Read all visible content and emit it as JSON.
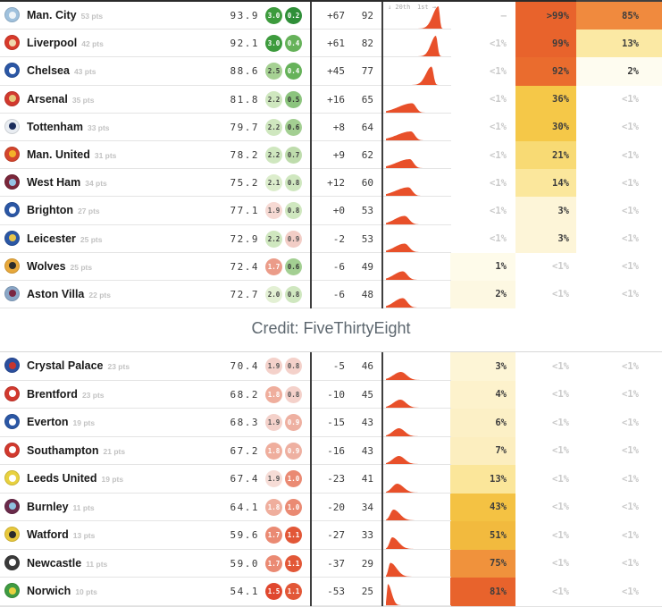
{
  "credit": "Credit: FiveThirtyEight",
  "chart_data": {
    "type": "table",
    "header": {
      "spark_left": "↓ 20th",
      "spark_right": "1st →"
    },
    "accent_colors": {
      "spark_fill": "#e8502a",
      "divider": "#3f3f3f",
      "muted_text": "#c9c9c9",
      "dark_text": "#3d3d3d"
    },
    "tables": [
      {
        "rows": [
          {
            "team": "Man. City",
            "pts_label": "53 pts",
            "crest": [
              "#9fc1dd",
              "#eef4f8"
            ],
            "spi": "93.9",
            "off": [
              "3.0",
              "#3d9b3d",
              "#ffffff"
            ],
            "def": [
              "0.2",
              "#2f8f38",
              "#ffffff"
            ],
            "gd": "+67",
            "pts": "92",
            "spark": {
              "c": 0.84,
              "wl": 0.09,
              "wr": 0.02,
              "h": 1
            },
            "rel": {
              "t": "–",
              "bg": "",
              "muted": true
            },
            "top4": {
              "t": ">99%",
              "bg": "#e8632c",
              "muted": false
            },
            "win": {
              "t": "85%",
              "bg": "#f08a3e",
              "muted": false
            }
          },
          {
            "team": "Liverpool",
            "pts_label": "42 pts",
            "crest": [
              "#d83a2b",
              "#efd7ad"
            ],
            "spi": "92.1",
            "off": [
              "3.0",
              "#3d9b3d",
              "#ffffff"
            ],
            "def": [
              "0.4",
              "#66b25a",
              "#ffffff"
            ],
            "gd": "+61",
            "pts": "82",
            "spark": {
              "c": 0.8,
              "wl": 0.08,
              "wr": 0.025,
              "h": 0.92
            },
            "rel": {
              "t": "<1%",
              "bg": "",
              "muted": true
            },
            "top4": {
              "t": "99%",
              "bg": "#e8632c",
              "muted": false
            },
            "win": {
              "t": "13%",
              "bg": "#fbe9a4",
              "muted": false
            }
          },
          {
            "team": "Chelsea",
            "pts_label": "43 pts",
            "crest": [
              "#2b57a5",
              "#ffffff"
            ],
            "spi": "88.6",
            "off": [
              "2.5",
              "#a6d193",
              "#3a3a3a"
            ],
            "def": [
              "0.4",
              "#66b25a",
              "#ffffff"
            ],
            "gd": "+45",
            "pts": "77",
            "spark": {
              "c": 0.73,
              "wl": 0.09,
              "wr": 0.03,
              "h": 0.82
            },
            "rel": {
              "t": "<1%",
              "bg": "",
              "muted": true
            },
            "top4": {
              "t": "92%",
              "bg": "#ea6c2e",
              "muted": false
            },
            "win": {
              "t": "2%",
              "bg": "#fefcf0",
              "muted": false
            }
          },
          {
            "team": "Arsenal",
            "pts_label": "35 pts",
            "crest": [
              "#d2392e",
              "#e6c87c"
            ],
            "spi": "81.8",
            "off": [
              "2.2",
              "#cfe7bf",
              "#444444"
            ],
            "def": [
              "0.5",
              "#8cc47e",
              "#333333"
            ],
            "gd": "+16",
            "pts": "65",
            "spark": {
              "c": 0.42,
              "wl": 0.22,
              "wr": 0.06,
              "h": 0.42
            },
            "rel": {
              "t": "<1%",
              "bg": "",
              "muted": true
            },
            "top4": {
              "t": "36%",
              "bg": "#f5c848",
              "muted": false
            },
            "win": {
              "t": "<1%",
              "bg": "",
              "muted": true
            }
          },
          {
            "team": "Tottenham",
            "pts_label": "33 pts",
            "crest": [
              "#e9edf2",
              "#1b2d5c"
            ],
            "spi": "79.7",
            "off": [
              "2.2",
              "#cfe7bf",
              "#444444"
            ],
            "def": [
              "0.6",
              "#a3cf92",
              "#333333"
            ],
            "gd": "+8",
            "pts": "64",
            "spark": {
              "c": 0.4,
              "wl": 0.22,
              "wr": 0.06,
              "h": 0.4
            },
            "rel": {
              "t": "<1%",
              "bg": "",
              "muted": true
            },
            "top4": {
              "t": "30%",
              "bg": "#f5c848",
              "muted": false
            },
            "win": {
              "t": "<1%",
              "bg": "",
              "muted": true
            }
          },
          {
            "team": "Man. United",
            "pts_label": "31 pts",
            "crest": [
              "#d4452c",
              "#f3b229"
            ],
            "spi": "78.2",
            "off": [
              "2.2",
              "#cfe7bf",
              "#444444"
            ],
            "def": [
              "0.7",
              "#bedcac",
              "#444444"
            ],
            "gd": "+9",
            "pts": "62",
            "spark": {
              "c": 0.38,
              "wl": 0.21,
              "wr": 0.06,
              "h": 0.4
            },
            "rel": {
              "t": "<1%",
              "bg": "",
              "muted": true
            },
            "top4": {
              "t": "21%",
              "bg": "#f8da74",
              "muted": false
            },
            "win": {
              "t": "<1%",
              "bg": "",
              "muted": true
            }
          },
          {
            "team": "West Ham",
            "pts_label": "34 pts",
            "crest": [
              "#7a263a",
              "#95c3e4"
            ],
            "spi": "75.2",
            "off": [
              "2.1",
              "#dcedcc",
              "#444444"
            ],
            "def": [
              "0.8",
              "#cfe7bf",
              "#444444"
            ],
            "gd": "+12",
            "pts": "60",
            "spark": {
              "c": 0.36,
              "wl": 0.2,
              "wr": 0.06,
              "h": 0.38
            },
            "rel": {
              "t": "<1%",
              "bg": "",
              "muted": true
            },
            "top4": {
              "t": "14%",
              "bg": "#fbe79c",
              "muted": false
            },
            "win": {
              "t": "<1%",
              "bg": "",
              "muted": true
            }
          },
          {
            "team": "Brighton",
            "pts_label": "27 pts",
            "crest": [
              "#2b57a5",
              "#ffffff"
            ],
            "spi": "77.1",
            "off": [
              "1.9",
              "#f6d9d3",
              "#555555"
            ],
            "def": [
              "0.8",
              "#cfe7bf",
              "#444444"
            ],
            "gd": "+0",
            "pts": "53",
            "spark": {
              "c": 0.3,
              "wl": 0.16,
              "wr": 0.07,
              "h": 0.38
            },
            "rel": {
              "t": "<1%",
              "bg": "",
              "muted": true
            },
            "top4": {
              "t": "3%",
              "bg": "#fdf5d8",
              "muted": false
            },
            "win": {
              "t": "<1%",
              "bg": "",
              "muted": true
            }
          },
          {
            "team": "Leicester",
            "pts_label": "25 pts",
            "crest": [
              "#2b57a5",
              "#e8c54a"
            ],
            "spi": "72.9",
            "off": [
              "2.2",
              "#cfe7bf",
              "#444444"
            ],
            "def": [
              "0.9",
              "#f2cdc6",
              "#555555"
            ],
            "gd": "-2",
            "pts": "53",
            "spark": {
              "c": 0.3,
              "wl": 0.16,
              "wr": 0.07,
              "h": 0.38
            },
            "rel": {
              "t": "<1%",
              "bg": "",
              "muted": true
            },
            "top4": {
              "t": "3%",
              "bg": "#fdf5d8",
              "muted": false
            },
            "win": {
              "t": "<1%",
              "bg": "",
              "muted": true
            }
          },
          {
            "team": "Wolves",
            "pts_label": "25 pts",
            "crest": [
              "#e7a83b",
              "#2b2b2b"
            ],
            "spi": "72.4",
            "off": [
              "1.7",
              "#eb9c89",
              "#ffffff"
            ],
            "def": [
              "0.6",
              "#a3cf92",
              "#333333"
            ],
            "gd": "-6",
            "pts": "49",
            "spark": {
              "c": 0.27,
              "wl": 0.14,
              "wr": 0.07,
              "h": 0.38
            },
            "rel": {
              "t": "1%",
              "bg": "#fefbea",
              "muted": false
            },
            "top4": {
              "t": "<1%",
              "bg": "",
              "muted": true
            },
            "win": {
              "t": "<1%",
              "bg": "",
              "muted": true
            }
          },
          {
            "team": "Aston Villa",
            "pts_label": "22 pts",
            "crest": [
              "#8aa7c7",
              "#7a2741"
            ],
            "spi": "72.7",
            "off": [
              "2.0",
              "#e3f0d4",
              "#444444"
            ],
            "def": [
              "0.8",
              "#cfe7bf",
              "#444444"
            ],
            "gd": "-6",
            "pts": "48",
            "spark": {
              "c": 0.27,
              "wl": 0.14,
              "wr": 0.07,
              "h": 0.42
            },
            "rel": {
              "t": "2%",
              "bg": "#fdf8e2",
              "muted": false
            },
            "top4": {
              "t": "<1%",
              "bg": "",
              "muted": true
            },
            "win": {
              "t": "<1%",
              "bg": "",
              "muted": true
            }
          }
        ]
      },
      {
        "rows": [
          {
            "team": "Crystal Palace",
            "pts_label": "23 pts",
            "crest": [
              "#2b4f9e",
              "#c8362e"
            ],
            "spi": "70.4",
            "off": [
              "1.9",
              "#f4d1ca",
              "#555555"
            ],
            "def": [
              "0.8",
              "#f4d1ca",
              "#555555"
            ],
            "gd": "-5",
            "pts": "46",
            "spark": {
              "c": 0.24,
              "wl": 0.12,
              "wr": 0.09,
              "h": 0.36
            },
            "rel": {
              "t": "3%",
              "bg": "#fdf5d6",
              "muted": false
            },
            "top4": {
              "t": "<1%",
              "bg": "",
              "muted": true
            },
            "win": {
              "t": "<1%",
              "bg": "",
              "muted": true
            }
          },
          {
            "team": "Brentford",
            "pts_label": "23 pts",
            "crest": [
              "#d2392e",
              "#ffffff"
            ],
            "spi": "68.2",
            "off": [
              "1.8",
              "#efae9d",
              "#ffffff"
            ],
            "def": [
              "0.8",
              "#f4d1ca",
              "#555555"
            ],
            "gd": "-10",
            "pts": "45",
            "spark": {
              "c": 0.23,
              "wl": 0.11,
              "wr": 0.09,
              "h": 0.36
            },
            "rel": {
              "t": "4%",
              "bg": "#fdf2cc",
              "muted": false
            },
            "top4": {
              "t": "<1%",
              "bg": "",
              "muted": true
            },
            "win": {
              "t": "<1%",
              "bg": "",
              "muted": true
            }
          },
          {
            "team": "Everton",
            "pts_label": "19 pts",
            "crest": [
              "#2b57a5",
              "#ffffff"
            ],
            "spi": "68.3",
            "off": [
              "1.9",
              "#f4d1ca",
              "#555555"
            ],
            "def": [
              "0.9",
              "#eeb0a1",
              "#ffffff"
            ],
            "gd": "-15",
            "pts": "43",
            "spark": {
              "c": 0.21,
              "wl": 0.1,
              "wr": 0.09,
              "h": 0.36
            },
            "rel": {
              "t": "6%",
              "bg": "#fcf0c6",
              "muted": false
            },
            "top4": {
              "t": "<1%",
              "bg": "",
              "muted": true
            },
            "win": {
              "t": "<1%",
              "bg": "",
              "muted": true
            }
          },
          {
            "team": "Southampton",
            "pts_label": "21 pts",
            "crest": [
              "#d2392e",
              "#ffffff"
            ],
            "spi": "67.2",
            "off": [
              "1.8",
              "#efae9d",
              "#ffffff"
            ],
            "def": [
              "0.9",
              "#eeb0a1",
              "#ffffff"
            ],
            "gd": "-16",
            "pts": "43",
            "spark": {
              "c": 0.21,
              "wl": 0.1,
              "wr": 0.09,
              "h": 0.36
            },
            "rel": {
              "t": "7%",
              "bg": "#fceebf",
              "muted": false
            },
            "top4": {
              "t": "<1%",
              "bg": "",
              "muted": true
            },
            "win": {
              "t": "<1%",
              "bg": "",
              "muted": true
            }
          },
          {
            "team": "Leeds United",
            "pts_label": "19 pts",
            "crest": [
              "#e8d13f",
              "#ffffff"
            ],
            "spi": "67.4",
            "off": [
              "1.9",
              "#f6dcd6",
              "#555555"
            ],
            "def": [
              "1.0",
              "#ea8a73",
              "#ffffff"
            ],
            "gd": "-23",
            "pts": "41",
            "spark": {
              "c": 0.18,
              "wl": 0.08,
              "wr": 0.1,
              "h": 0.4
            },
            "rel": {
              "t": "13%",
              "bg": "#fbe69a",
              "muted": false
            },
            "top4": {
              "t": "<1%",
              "bg": "",
              "muted": true
            },
            "win": {
              "t": "<1%",
              "bg": "",
              "muted": true
            }
          },
          {
            "team": "Burnley",
            "pts_label": "11 pts",
            "crest": [
              "#6a2a4a",
              "#8fc3e0"
            ],
            "spi": "64.1",
            "off": [
              "1.8",
              "#efae9d",
              "#ffffff"
            ],
            "def": [
              "1.0",
              "#ea8a73",
              "#ffffff"
            ],
            "gd": "-20",
            "pts": "34",
            "spark": {
              "c": 0.12,
              "wl": 0.05,
              "wr": 0.1,
              "h": 0.48
            },
            "rel": {
              "t": "43%",
              "bg": "#f4c243",
              "muted": false
            },
            "top4": {
              "t": "<1%",
              "bg": "",
              "muted": true
            },
            "win": {
              "t": "<1%",
              "bg": "",
              "muted": true
            }
          },
          {
            "team": "Watford",
            "pts_label": "13 pts",
            "crest": [
              "#e8c83c",
              "#2b2b2b"
            ],
            "spi": "59.6",
            "off": [
              "1.7",
              "#ea8a73",
              "#ffffff"
            ],
            "def": [
              "1.1",
              "#e25737",
              "#ffffff"
            ],
            "gd": "-27",
            "pts": "33",
            "spark": {
              "c": 0.1,
              "wl": 0.04,
              "wr": 0.1,
              "h": 0.52
            },
            "rel": {
              "t": "51%",
              "bg": "#f2ba3e",
              "muted": false
            },
            "top4": {
              "t": "<1%",
              "bg": "",
              "muted": true
            },
            "win": {
              "t": "<1%",
              "bg": "",
              "muted": true
            }
          },
          {
            "team": "Newcastle",
            "pts_label": "11 pts",
            "crest": [
              "#3a3a3a",
              "#ffffff"
            ],
            "spi": "59.0",
            "off": [
              "1.7",
              "#ea8a73",
              "#ffffff"
            ],
            "def": [
              "1.1",
              "#e25737",
              "#ffffff"
            ],
            "gd": "-37",
            "pts": "29",
            "spark": {
              "c": 0.07,
              "wl": 0.03,
              "wr": 0.1,
              "h": 0.62
            },
            "rel": {
              "t": "75%",
              "bg": "#f0923c",
              "muted": false
            },
            "top4": {
              "t": "<1%",
              "bg": "",
              "muted": true
            },
            "win": {
              "t": "<1%",
              "bg": "",
              "muted": true
            }
          },
          {
            "team": "Norwich",
            "pts_label": "10 pts",
            "crest": [
              "#3f9b42",
              "#e8d13f"
            ],
            "spi": "54.1",
            "off": [
              "1.5",
              "#e0472e",
              "#ffffff"
            ],
            "def": [
              "1.1",
              "#e25737",
              "#ffffff"
            ],
            "gd": "-53",
            "pts": "25",
            "spark": {
              "c": 0.03,
              "wl": 0.015,
              "wr": 0.06,
              "h": 0.95
            },
            "rel": {
              "t": "81%",
              "bg": "#e8632c",
              "muted": false
            },
            "top4": {
              "t": "<1%",
              "bg": "",
              "muted": true
            },
            "win": {
              "t": "<1%",
              "bg": "",
              "muted": true
            }
          }
        ]
      }
    ]
  }
}
